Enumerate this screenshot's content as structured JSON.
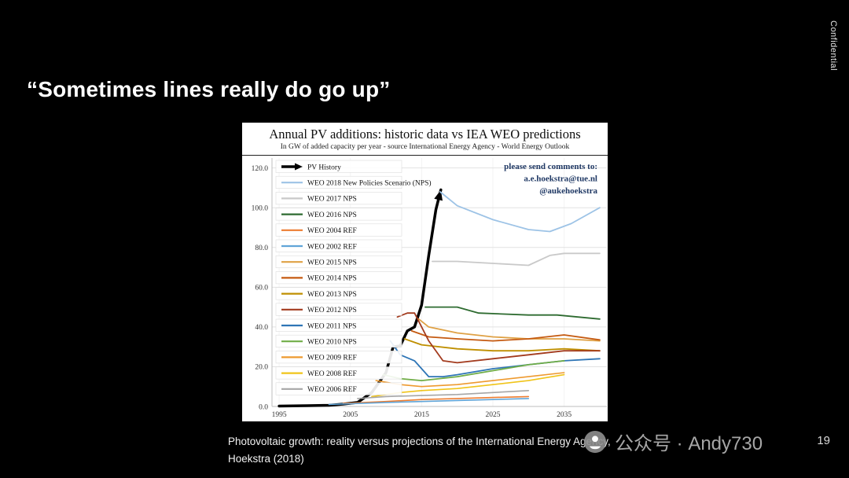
{
  "slide": {
    "title": "“Sometimes lines really do go up”",
    "confidential": "Confidential",
    "caption": "Photovoltaic growth: reality versus projections of the International Energy Agency, Hoekstra (2018)",
    "watermark": "公众号 · Andy730",
    "page_number": "19"
  },
  "chart_data": {
    "type": "line",
    "title": "Annual PV additions: historic data vs IEA WEO predictions",
    "subtitle": "In GW of added capacity per year - source International Energy Agency - World Energy Outlook",
    "annotation": [
      "please send comments to:",
      "a.e.hoekstra@tue.nl",
      "@aukehoekstra"
    ],
    "xlabel": "",
    "ylabel": "GW of added capacity per year",
    "xlim": [
      1994,
      2041
    ],
    "ylim": [
      0,
      125
    ],
    "xticks": [
      1995,
      2005,
      2015,
      2025,
      2035
    ],
    "yticks": [
      0,
      20,
      40,
      60,
      80,
      100,
      120
    ],
    "ytick_labels": [
      "0.0",
      "20.0",
      "40.0",
      "60.0",
      "80.0",
      "100.0",
      "120.0"
    ],
    "grid": true,
    "legend_position": "left-inside",
    "series": [
      {
        "name": "PV History",
        "color": "#000000",
        "width": 3.5,
        "arrow": true,
        "points": [
          [
            1995,
            0.2
          ],
          [
            1999,
            0.4
          ],
          [
            2002,
            0.6
          ],
          [
            2004,
            1.2
          ],
          [
            2006,
            2
          ],
          [
            2008,
            7
          ],
          [
            2010,
            17
          ],
          [
            2011,
            30
          ],
          [
            2012,
            30.5
          ],
          [
            2013,
            38
          ],
          [
            2014,
            40
          ],
          [
            2015,
            51
          ],
          [
            2016,
            76
          ],
          [
            2017,
            99
          ],
          [
            2017.7,
            109
          ]
        ]
      },
      {
        "name": "WEO 2018 New Policies Scenario (NPS)",
        "color": "#9dc3e6",
        "width": 1.8,
        "points": [
          [
            2017.6,
            108
          ],
          [
            2020,
            101
          ],
          [
            2025,
            94
          ],
          [
            2030,
            89
          ],
          [
            2033,
            88
          ],
          [
            2036,
            92
          ],
          [
            2040,
            100
          ]
        ]
      },
      {
        "name": "WEO 2017 NPS",
        "color": "#c9c9c9",
        "width": 1.8,
        "points": [
          [
            2016.5,
            73
          ],
          [
            2020,
            73
          ],
          [
            2025,
            72
          ],
          [
            2030,
            71
          ],
          [
            2033,
            76
          ],
          [
            2035,
            77
          ],
          [
            2040,
            77
          ]
        ]
      },
      {
        "name": "WEO 2016 NPS",
        "color": "#2e6b30",
        "width": 1.8,
        "points": [
          [
            2015.5,
            50
          ],
          [
            2020,
            50
          ],
          [
            2023,
            47
          ],
          [
            2030,
            46
          ],
          [
            2034,
            46
          ],
          [
            2040,
            44
          ]
        ]
      },
      {
        "name": "WEO 2004 REF",
        "color": "#ed7d31",
        "width": 1.6,
        "points": [
          [
            2004,
            1.5
          ],
          [
            2010,
            2.5
          ],
          [
            2015,
            3.5
          ],
          [
            2020,
            4
          ],
          [
            2025,
            4.5
          ],
          [
            2030,
            5
          ]
        ]
      },
      {
        "name": "WEO 2002 REF",
        "color": "#61a5d8",
        "width": 1.6,
        "points": [
          [
            2002,
            1
          ],
          [
            2010,
            2
          ],
          [
            2015,
            2.5
          ],
          [
            2020,
            3
          ],
          [
            2025,
            3.5
          ],
          [
            2030,
            4
          ]
        ]
      },
      {
        "name": "WEO 2015 NPS",
        "color": "#dfa145",
        "width": 1.8,
        "points": [
          [
            2014.6,
            44
          ],
          [
            2016,
            40
          ],
          [
            2020,
            37
          ],
          [
            2025,
            35
          ],
          [
            2030,
            34
          ],
          [
            2035,
            34
          ],
          [
            2040,
            33
          ]
        ]
      },
      {
        "name": "WEO 2014 NPS",
        "color": "#c55a11",
        "width": 1.8,
        "points": [
          [
            2013.6,
            38
          ],
          [
            2016,
            35
          ],
          [
            2020,
            34
          ],
          [
            2025,
            33
          ],
          [
            2030,
            34
          ],
          [
            2035,
            36
          ],
          [
            2040,
            33.5
          ]
        ]
      },
      {
        "name": "WEO 2013 NPS",
        "color": "#bf8f00",
        "width": 1.8,
        "points": [
          [
            2012.6,
            34
          ],
          [
            2015,
            31
          ],
          [
            2020,
            29
          ],
          [
            2025,
            28
          ],
          [
            2030,
            28
          ],
          [
            2035,
            29
          ],
          [
            2040,
            28
          ]
        ]
      },
      {
        "name": "WEO 2012 NPS",
        "color": "#a33b1e",
        "width": 1.8,
        "points": [
          [
            2011.6,
            45
          ],
          [
            2013,
            47
          ],
          [
            2014,
            47
          ],
          [
            2016,
            33
          ],
          [
            2018,
            23
          ],
          [
            2020,
            22
          ],
          [
            2025,
            24
          ],
          [
            2030,
            26
          ],
          [
            2035,
            28
          ],
          [
            2040,
            28
          ]
        ]
      },
      {
        "name": "WEO 2011 NPS",
        "color": "#2e75b6",
        "width": 1.8,
        "points": [
          [
            2010.6,
            33
          ],
          [
            2012,
            26
          ],
          [
            2014,
            23
          ],
          [
            2016,
            15
          ],
          [
            2018,
            15
          ],
          [
            2020,
            16
          ],
          [
            2025,
            19
          ],
          [
            2030,
            21
          ],
          [
            2035,
            23
          ],
          [
            2040,
            24
          ]
        ]
      },
      {
        "name": "WEO 2010 NPS",
        "color": "#70ad47",
        "width": 1.8,
        "points": [
          [
            2009.6,
            16
          ],
          [
            2012,
            14
          ],
          [
            2015,
            13
          ],
          [
            2020,
            15
          ],
          [
            2025,
            18
          ],
          [
            2030,
            21
          ],
          [
            2035,
            23
          ]
        ]
      },
      {
        "name": "WEO 2009 REF",
        "color": "#ee9a2f",
        "width": 1.6,
        "points": [
          [
            2008.6,
            13
          ],
          [
            2012,
            11
          ],
          [
            2015,
            10
          ],
          [
            2020,
            11
          ],
          [
            2025,
            13
          ],
          [
            2030,
            15
          ],
          [
            2035,
            17
          ]
        ]
      },
      {
        "name": "WEO 2008 REF",
        "color": "#f0c419",
        "width": 1.6,
        "points": [
          [
            2008,
            5
          ],
          [
            2012,
            7
          ],
          [
            2015,
            8
          ],
          [
            2020,
            9
          ],
          [
            2025,
            11
          ],
          [
            2030,
            13
          ],
          [
            2035,
            16
          ]
        ]
      },
      {
        "name": "WEO 2006 REF",
        "color": "#a6a6a6",
        "width": 1.6,
        "points": [
          [
            2006,
            4
          ],
          [
            2010,
            5
          ],
          [
            2015,
            5.5
          ],
          [
            2020,
            6
          ],
          [
            2025,
            7
          ],
          [
            2030,
            8
          ]
        ]
      }
    ]
  }
}
